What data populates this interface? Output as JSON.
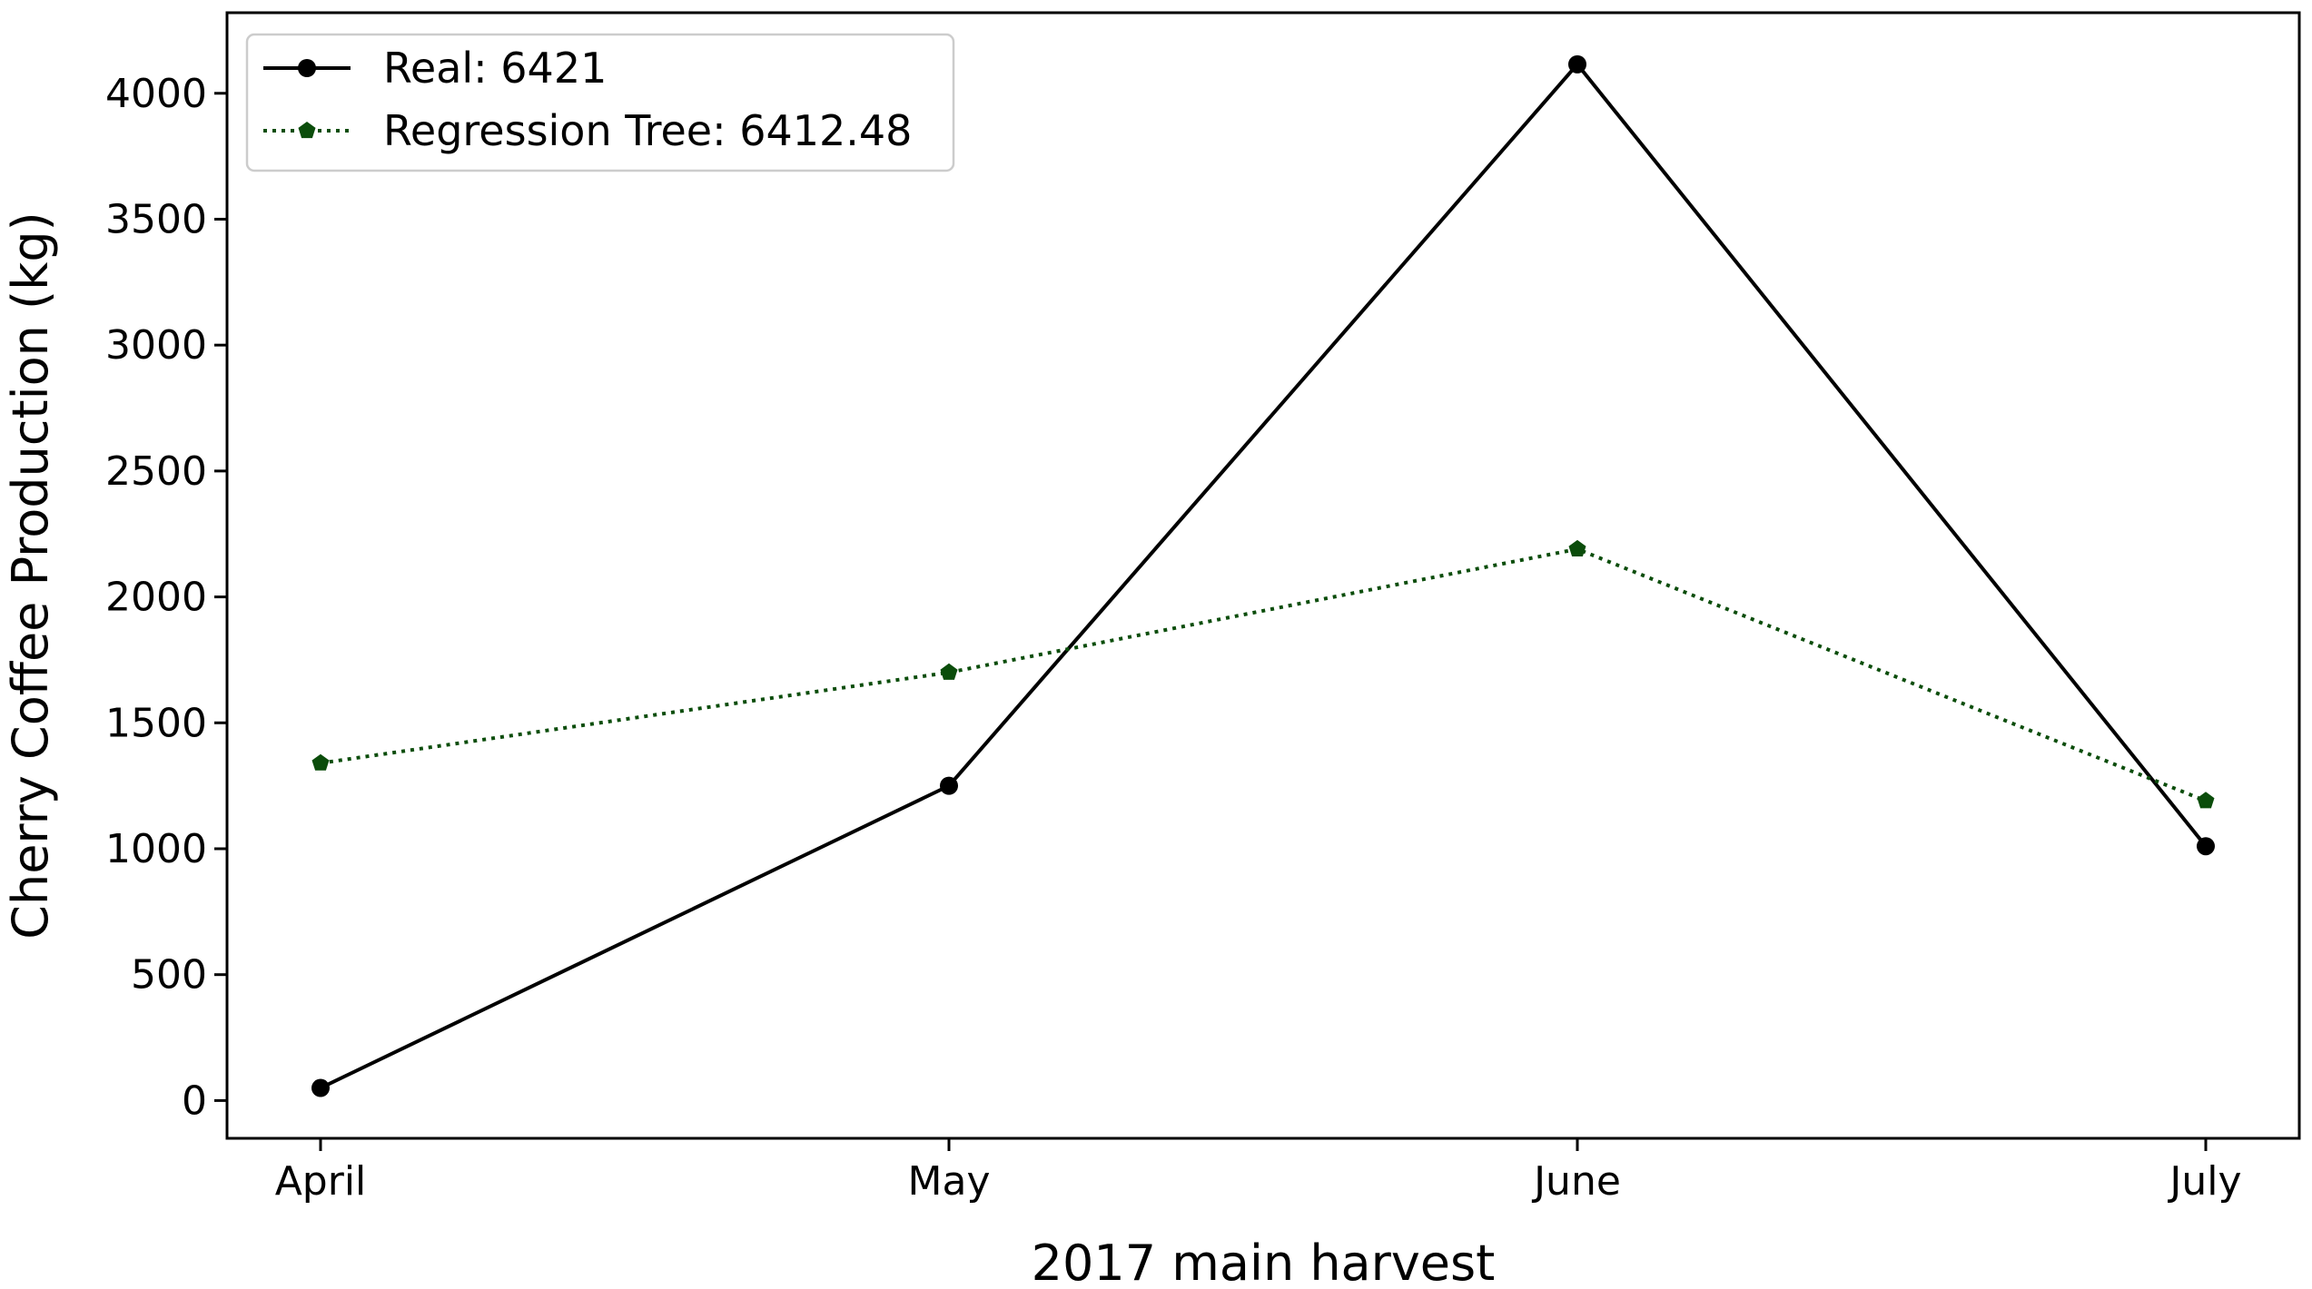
{
  "chart_data": {
    "type": "line",
    "title": "",
    "xlabel": "2017 main harvest",
    "ylabel": "Cherry Coffee Production (kg)",
    "categories": [
      "April",
      "May",
      "June",
      "July"
    ],
    "ylim": [
      -150,
      4320
    ],
    "yticks": [
      0,
      500,
      1000,
      1500,
      2000,
      2500,
      3000,
      3500,
      4000
    ],
    "grid": false,
    "legend_position": "top-left",
    "series": [
      {
        "name": "Real: 6421",
        "values": [
          50,
          1250,
          4115,
          1010
        ],
        "color": "#000000",
        "line_style": "solid",
        "marker": "circle"
      },
      {
        "name": "Regression Tree: 6412.48",
        "values": [
          1340,
          1700,
          2190,
          1190
        ],
        "color": "#0b4d0b",
        "line_style": "dotted",
        "marker": "pentagon"
      }
    ]
  }
}
